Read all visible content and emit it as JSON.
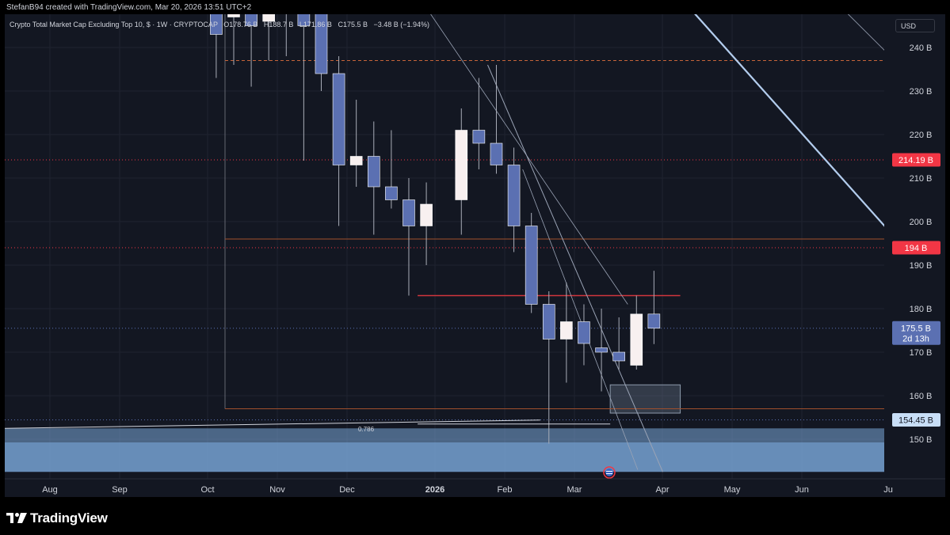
{
  "credit": "StefanB94 created with TradingView.com, Mar 20, 2026 13:51 UTC+2",
  "legend": {
    "title": "Crypto Total Market Cap Excluding Top 10, $ · 1W · CRYPTOCAP",
    "open": "O178.76 B",
    "high": "H188.7 B",
    "low": "L171.86 B",
    "close": "C175.5 B",
    "change": "−3.48 B (−1.94%)"
  },
  "currency": "USD",
  "brand": "TradingView",
  "logo_icon": "tradingview-logo-icon",
  "fib_label": "0.786",
  "colors": {
    "background": "#131722",
    "bull_candle": "#f8f0f0",
    "bear_candle": "#5b70b2",
    "resistance_line": "#f23645",
    "trend_line": "#b3cdee",
    "zone_fill": "#7aa7d9",
    "price_badge": "#5b70b2",
    "level_badge": "#f23645",
    "support_badge": "#c8def7"
  },
  "chart_data": {
    "type": "candlestick",
    "timeframe": "1W",
    "x_axis": {
      "labels": [
        "Aug",
        "Sep",
        "Oct",
        "Nov",
        "Dec",
        "2026",
        "Feb",
        "Mar",
        "Apr",
        "May",
        "Jun",
        "Ju"
      ]
    },
    "y_axis": {
      "unit": "B",
      "range": [
        142,
        254
      ],
      "ticks": [
        "150 B",
        "160 B",
        "170 B",
        "180 B",
        "190 B",
        "200 B",
        "210 B",
        "220 B",
        "230 B",
        "240 B"
      ]
    },
    "candles": [
      {
        "week": "2025-09-29",
        "open": 251,
        "high": 254,
        "low": 233,
        "close": 243
      },
      {
        "week": "2025-10-06",
        "open": 247,
        "high": 254,
        "low": 236,
        "close": 250
      },
      {
        "week": "2025-10-13",
        "open": 249,
        "high": 254,
        "low": 231,
        "close": 245
      },
      {
        "week": "2025-10-20",
        "open": 246,
        "high": 254,
        "low": 237,
        "close": 249
      },
      {
        "week": "2025-10-27",
        "open": 252,
        "high": 254,
        "low": 238,
        "close": 248
      },
      {
        "week": "2025-11-03",
        "open": 249,
        "high": 254,
        "low": 214,
        "close": 245
      },
      {
        "week": "2025-11-10",
        "open": 254,
        "high": 254,
        "low": 230,
        "close": 234
      },
      {
        "week": "2025-11-17",
        "open": 234,
        "high": 238,
        "low": 199,
        "close": 213
      },
      {
        "week": "2025-11-24",
        "open": 213,
        "high": 228,
        "low": 208,
        "close": 215
      },
      {
        "week": "2025-12-01",
        "open": 215,
        "high": 223,
        "low": 197,
        "close": 208
      },
      {
        "week": "2025-12-08",
        "open": 208,
        "high": 221,
        "low": 203,
        "close": 205
      },
      {
        "week": "2025-12-15",
        "open": 205,
        "high": 210,
        "low": 183,
        "close": 199
      },
      {
        "week": "2025-12-22",
        "open": 199,
        "high": 209,
        "low": 190,
        "close": 204
      },
      {
        "week": "2026-01-05",
        "open": 205,
        "high": 226,
        "low": 197,
        "close": 221
      },
      {
        "week": "2026-01-12",
        "open": 221,
        "high": 233,
        "low": 212,
        "close": 218
      },
      {
        "week": "2026-01-19",
        "open": 218,
        "high": 236,
        "low": 211,
        "close": 213
      },
      {
        "week": "2026-01-26",
        "open": 213,
        "high": 217,
        "low": 193,
        "close": 199
      },
      {
        "week": "2026-02-02",
        "open": 199,
        "high": 202,
        "low": 179,
        "close": 181
      },
      {
        "week": "2026-02-09",
        "open": 181,
        "high": 184,
        "low": 149,
        "close": 173
      },
      {
        "week": "2026-02-16",
        "open": 173,
        "high": 186,
        "low": 163,
        "close": 177
      },
      {
        "week": "2026-02-23",
        "open": 177,
        "high": 181,
        "low": 167,
        "close": 172
      },
      {
        "week": "2026-03-02",
        "open": 171,
        "high": 180,
        "low": 161,
        "close": 170
      },
      {
        "week": "2026-03-09",
        "open": 170,
        "high": 178,
        "low": 166,
        "close": 168
      },
      {
        "week": "2026-03-16",
        "open": 167,
        "high": 183,
        "low": 166,
        "close": 178.76
      },
      {
        "week": "2026-03-23",
        "open": 178.76,
        "high": 188.7,
        "low": 171.86,
        "close": 175.5
      }
    ],
    "price_badges": [
      {
        "label": "214.19 B",
        "value": 214.19,
        "style": "red"
      },
      {
        "label": "194 B",
        "value": 194,
        "style": "red"
      },
      {
        "label": "175.5 B",
        "sub": "2d 13h",
        "value": 175.5,
        "style": "blue"
      },
      {
        "label": "154.45 B",
        "value": 154.45,
        "style": "light"
      }
    ],
    "horizontal_levels": [
      {
        "value": 237,
        "style": "dashed-orange",
        "from": "2025-10-06",
        "to": "2026-06-29"
      },
      {
        "value": 214.19,
        "style": "dotted-red",
        "from": "full",
        "to": "full"
      },
      {
        "value": 196,
        "style": "solid-orange",
        "from": "2025-10-06",
        "to": "2026-06-29"
      },
      {
        "value": 194,
        "style": "dotted-red",
        "from": "full",
        "to": "full"
      },
      {
        "value": 183,
        "style": "solid-red",
        "from": "2025-12-22",
        "to": "2026-04-06"
      },
      {
        "value": 175.5,
        "style": "dotted-blue",
        "from": "full",
        "to": "full"
      },
      {
        "value": 157,
        "style": "solid-orange",
        "from": "2025-10-06",
        "to": "2026-06-29"
      },
      {
        "value": 154.45,
        "style": "dotted-blue",
        "from": "full",
        "to": "full"
      }
    ],
    "zones": [
      {
        "name": "support-zone-upper",
        "from": "2025-06-30",
        "to": "2026-06-29",
        "top": 152.5,
        "bottom": 149.3
      },
      {
        "name": "support-zone-lower",
        "from": "2025-06-30",
        "to": "2026-06-29",
        "top": 149.3,
        "bottom": 142.5
      },
      {
        "name": "target-box",
        "from": "2026-03-09",
        "to": "2026-04-06",
        "top": 162.5,
        "bottom": 156
      }
    ]
  }
}
